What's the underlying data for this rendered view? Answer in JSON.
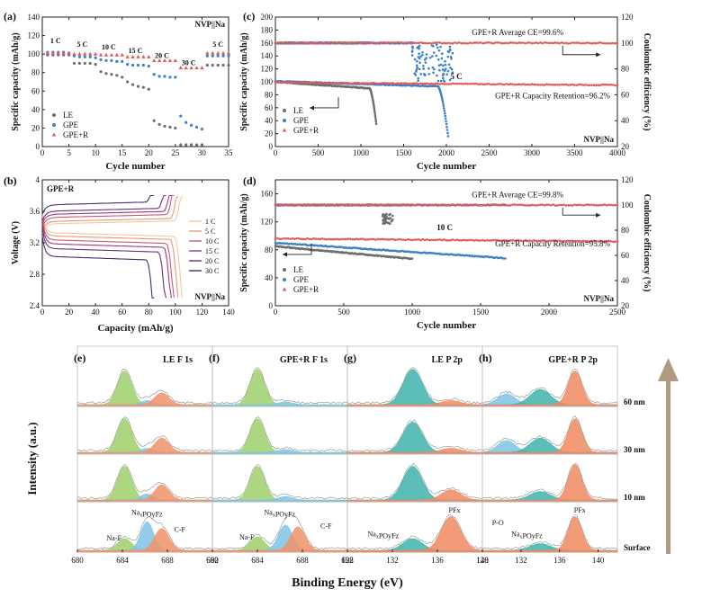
{
  "colors": {
    "le": "#6e6e6e",
    "gpe": "#3e80c6",
    "gper": "#e05a5a",
    "f_na_f": "#9ecf6a",
    "f_naxpo": "#7ec4e8",
    "f_cf": "#f1926a",
    "p_naxpo": "#3fb3ad",
    "p_pf": "#f18a60",
    "p_po": "#7ec4e8",
    "envelope": "#9a9a9a",
    "arrow": "#b09a80",
    "rate": [
      "#f6c79f",
      "#e49a7a",
      "#c65a74",
      "#9b3b7a",
      "#6b2f7a",
      "#4a2a70"
    ]
  },
  "chart_data": [
    {
      "id": "a",
      "type": "scatter",
      "panel_label": "(a)",
      "corner_label": "NVP||Na",
      "xlabel": "Cycle number",
      "ylabel": "Specific capacity (mAh/g)",
      "xlim": [
        0,
        35
      ],
      "ylim": [
        0,
        140
      ],
      "xticks": [
        0,
        5,
        10,
        15,
        20,
        25,
        30,
        35
      ],
      "yticks": [
        0,
        20,
        40,
        60,
        80,
        100,
        120,
        140
      ],
      "rate_labels": [
        {
          "text": "1 C",
          "x": 2.5,
          "y": 112
        },
        {
          "text": "5 C",
          "x": 7.5,
          "y": 108
        },
        {
          "text": "10 C",
          "x": 12.5,
          "y": 105
        },
        {
          "text": "15 C",
          "x": 17.5,
          "y": 101
        },
        {
          "text": "20 C",
          "x": 22.5,
          "y": 96
        },
        {
          "text": "30 C",
          "x": 27.5,
          "y": 88
        },
        {
          "text": "5 C",
          "x": 33,
          "y": 108
        }
      ],
      "series": [
        {
          "name": "LE",
          "color_key": "le",
          "points": [
            [
              1,
              99
            ],
            [
              2,
              99
            ],
            [
              3,
              99
            ],
            [
              4,
              99
            ],
            [
              5,
              99
            ],
            [
              6,
              90
            ],
            [
              7,
              90
            ],
            [
              8,
              90
            ],
            [
              9,
              90
            ],
            [
              10,
              89
            ],
            [
              11,
              81
            ],
            [
              12,
              79
            ],
            [
              13,
              78
            ],
            [
              14,
              77
            ],
            [
              15,
              75
            ],
            [
              16,
              70
            ],
            [
              17,
              67
            ],
            [
              18,
              65
            ],
            [
              19,
              64
            ],
            [
              20,
              62
            ],
            [
              21,
              28
            ],
            [
              22,
              24
            ],
            [
              23,
              22
            ],
            [
              24,
              21
            ],
            [
              25,
              20
            ],
            [
              26,
              2
            ],
            [
              27,
              2
            ],
            [
              28,
              2
            ],
            [
              29,
              2
            ],
            [
              30,
              2
            ],
            [
              31,
              88
            ],
            [
              32,
              88
            ],
            [
              33,
              88
            ],
            [
              34,
              88
            ],
            [
              35,
              88
            ]
          ]
        },
        {
          "name": "GPE",
          "color_key": "gpe",
          "points": [
            [
              1,
              102
            ],
            [
              2,
              102
            ],
            [
              3,
              102
            ],
            [
              4,
              102
            ],
            [
              5,
              101
            ],
            [
              6,
              98
            ],
            [
              7,
              97
            ],
            [
              8,
              97
            ],
            [
              9,
              97
            ],
            [
              10,
              96
            ],
            [
              11,
              94
            ],
            [
              12,
              93
            ],
            [
              13,
              93
            ],
            [
              14,
              92
            ],
            [
              15,
              92
            ],
            [
              16,
              89
            ],
            [
              17,
              88
            ],
            [
              18,
              88
            ],
            [
              19,
              88
            ],
            [
              20,
              87
            ],
            [
              21,
              78
            ],
            [
              22,
              76
            ],
            [
              23,
              76
            ],
            [
              24,
              75
            ],
            [
              25,
              75
            ],
            [
              26,
              33
            ],
            [
              27,
              26
            ],
            [
              28,
              23
            ],
            [
              29,
              21
            ],
            [
              30,
              19
            ],
            [
              31,
              98
            ],
            [
              32,
              98
            ],
            [
              33,
              98
            ],
            [
              34,
              98
            ],
            [
              35,
              98
            ]
          ]
        },
        {
          "name": "GPE+R",
          "color_key": "gper",
          "points": [
            [
              1,
              101
            ],
            [
              2,
              101
            ],
            [
              3,
              101
            ],
            [
              4,
              101
            ],
            [
              5,
              101
            ],
            [
              6,
              100
            ],
            [
              7,
              100
            ],
            [
              8,
              100
            ],
            [
              9,
              100
            ],
            [
              10,
              100
            ],
            [
              11,
              99
            ],
            [
              12,
              99
            ],
            [
              13,
              99
            ],
            [
              14,
              99
            ],
            [
              15,
              99
            ],
            [
              16,
              97
            ],
            [
              17,
              97
            ],
            [
              18,
              97
            ],
            [
              19,
              97
            ],
            [
              20,
              97
            ],
            [
              21,
              93
            ],
            [
              22,
              93
            ],
            [
              23,
              93
            ],
            [
              24,
              93
            ],
            [
              25,
              93
            ],
            [
              26,
              85
            ],
            [
              27,
              85
            ],
            [
              28,
              85
            ],
            [
              29,
              85
            ],
            [
              30,
              85
            ],
            [
              31,
              101
            ],
            [
              32,
              101
            ],
            [
              33,
              101
            ],
            [
              34,
              101
            ],
            [
              35,
              101
            ]
          ]
        }
      ],
      "legend_position": "bottom-left"
    },
    {
      "id": "b",
      "type": "line",
      "panel_label": "(b)",
      "corner_label": "NVP||Na",
      "inner_title": "GPE+R",
      "xlabel": "Capacity (mAh/g)",
      "ylabel": "Voltage (V)",
      "xlim": [
        0,
        140
      ],
      "ylim": [
        2.4,
        4.0
      ],
      "xticks": [
        0,
        20,
        40,
        60,
        80,
        100,
        120,
        140
      ],
      "yticks": [
        2.4,
        2.8,
        3.2,
        3.6,
        4.0
      ],
      "series": [
        {
          "name": "1 C",
          "capacity": 105,
          "charge_v": 3.44,
          "discharge_v": 3.33
        },
        {
          "name": "5 C",
          "capacity": 102,
          "charge_v": 3.47,
          "discharge_v": 3.29
        },
        {
          "name": "10 C",
          "capacity": 99,
          "charge_v": 3.52,
          "discharge_v": 3.24
        },
        {
          "name": "15 C",
          "capacity": 97,
          "charge_v": 3.56,
          "discharge_v": 3.19
        },
        {
          "name": "20 C",
          "capacity": 93,
          "charge_v": 3.6,
          "discharge_v": 3.13
        },
        {
          "name": "30 C",
          "capacity": 84,
          "charge_v": 3.68,
          "discharge_v": 3.03
        }
      ],
      "legend_position": "right"
    },
    {
      "id": "c",
      "type": "scatter",
      "panel_label": "(c)",
      "corner_label": "NVP||Na",
      "rate_label": "5 C",
      "xlabel": "Cycle number",
      "ylabel": "Specific capacity (mAh/g)",
      "y2label": "Coulombic efficiency (%)",
      "xlim": [
        0,
        4000
      ],
      "ylim": [
        0,
        200
      ],
      "y2lim": [
        20,
        120
      ],
      "xticks": [
        0,
        500,
        1000,
        1500,
        2000,
        2500,
        3000,
        3500,
        4000
      ],
      "yticks": [
        0,
        20,
        40,
        60,
        80,
        100,
        120,
        140,
        160,
        180,
        200
      ],
      "y2ticks": [
        20,
        40,
        60,
        80,
        100,
        120
      ],
      "annotations": [
        "GPE+R Average CE=99.6%",
        "GPE+R Capacity Retention=96.2%"
      ],
      "series": [
        {
          "name": "LE",
          "color_key": "le",
          "capacity": {
            "start": 100,
            "end": 90,
            "last_cycle": 1100,
            "drop_to": 35,
            "drop_end": 1180
          },
          "ce": {
            "value": 100,
            "last_cycle": 1100
          }
        },
        {
          "name": "GPE",
          "color_key": "gpe",
          "capacity": {
            "start": 101,
            "end": 93,
            "last_cycle": 1900,
            "drop_to": 16,
            "drop_end": 2020
          },
          "ce": {
            "value": 100,
            "last_cycle": 1600,
            "scatter_until": 2080
          }
        },
        {
          "name": "GPE+R",
          "color_key": "gper",
          "capacity": {
            "start": 99,
            "end": 95,
            "last_cycle": 4000
          },
          "ce": {
            "value": 100,
            "last_cycle": 4000
          }
        }
      ],
      "legend_position": "bottom-left"
    },
    {
      "id": "d",
      "type": "scatter",
      "panel_label": "(d)",
      "corner_label": "NVP||Na",
      "rate_label": "10 C",
      "xlabel": "Cycle number",
      "ylabel": "Specific capacity (mAh/g)",
      "y2label": "Coulombic efficiency (%)",
      "xlim": [
        0,
        2500
      ],
      "ylim": [
        0,
        180
      ],
      "y2lim": [
        20,
        120
      ],
      "xticks": [
        0,
        500,
        1000,
        1500,
        2000,
        2500
      ],
      "yticks": [
        0,
        40,
        80,
        120,
        160
      ],
      "y2ticks": [
        20,
        40,
        60,
        80,
        100,
        120
      ],
      "annotations": [
        "GPE+R Average CE=99.8%",
        "GPE+R Capacity Retention=95.8%"
      ],
      "series": [
        {
          "name": "LE",
          "color_key": "le",
          "capacity": {
            "start": 85,
            "end": 67,
            "last_cycle": 1000
          },
          "ce": {
            "value": 100,
            "last_cycle": 1000,
            "scatter_range": [
              780,
              860
            ]
          }
        },
        {
          "name": "GPE",
          "color_key": "gpe",
          "capacity": {
            "start": 90,
            "end": 68,
            "last_cycle": 1680
          },
          "ce": {
            "value": 100,
            "last_cycle": 1680
          }
        },
        {
          "name": "GPE+R",
          "color_key": "gper",
          "capacity": {
            "start": 96,
            "end": 92,
            "last_cycle": 2500
          },
          "ce": {
            "value": 100,
            "last_cycle": 2500
          }
        }
      ],
      "legend_position": "bottom-left"
    }
  ],
  "xps": {
    "ylabel": "Intensity (a.u.)",
    "xlabel": "Binding Energy (eV)",
    "depths": [
      "60 nm",
      "30 nm",
      "10 nm",
      "Surface"
    ],
    "panels": [
      {
        "id": "e",
        "label": "(e)",
        "title": "LE F 1s",
        "xlim": [
          680,
          692
        ],
        "xticks": [
          680,
          684,
          688,
          692
        ],
        "peaks": [
          {
            "key": "f_na_f",
            "center": 684.2,
            "width": 0.9,
            "amps": [
              1.0,
              1.0,
              1.0,
              0.35
            ]
          },
          {
            "key": "f_naxpo",
            "center": 686.2,
            "width": 0.8,
            "amps": [
              0.12,
              0.12,
              0.18,
              0.85
            ]
          },
          {
            "key": "f_cf",
            "center": 687.5,
            "width": 0.9,
            "amps": [
              0.35,
              0.42,
              0.45,
              0.65
            ]
          }
        ],
        "labels": [
          {
            "text": "Na-F",
            "x": 682.6,
            "y": 0.3,
            "key": "f_na_f"
          },
          {
            "text": "NaxPOyFz",
            "x": 684.8,
            "y": 1.05,
            "key": "f_naxpo"
          },
          {
            "text": "C-F",
            "x": 688.6,
            "y": 0.55,
            "key": "f_cf"
          }
        ]
      },
      {
        "id": "f",
        "label": "(f)",
        "title": "GPE+R F 1s",
        "xlim": [
          680,
          692
        ],
        "xticks": [
          680,
          684,
          688,
          692
        ],
        "peaks": [
          {
            "key": "f_na_f",
            "center": 684.0,
            "width": 0.9,
            "amps": [
              1.05,
              1.0,
              1.0,
              0.4
            ]
          },
          {
            "key": "f_naxpo",
            "center": 686.5,
            "width": 0.9,
            "amps": [
              0.08,
              0.08,
              0.1,
              0.75
            ]
          },
          {
            "key": "f_cf",
            "center": 687.6,
            "width": 0.9,
            "amps": [
              0.0,
              0.0,
              0.0,
              0.7
            ]
          }
        ],
        "labels": [
          {
            "text": "Na-F",
            "x": 682.4,
            "y": 0.32,
            "key": "f_na_f"
          },
          {
            "text": "NaxPOyFz",
            "x": 684.6,
            "y": 1.05,
            "key": "f_naxpo"
          },
          {
            "text": "C-F",
            "x": 689.6,
            "y": 0.65,
            "key": "f_cf"
          }
        ]
      },
      {
        "id": "g",
        "label": "(g)",
        "title": "LE P 2p",
        "xlim": [
          128,
          140
        ],
        "xticks": [
          128,
          132,
          136,
          140
        ],
        "peaks": [
          {
            "key": "p_naxpo",
            "center": 133.8,
            "width": 1.2,
            "amps": [
              1.05,
              0.9,
              1.0,
              0.35
            ]
          },
          {
            "key": "p_pf",
            "center": 137.2,
            "width": 1.2,
            "amps": [
              0.12,
              0.12,
              0.3,
              1.0
            ]
          }
        ],
        "labels": [
          {
            "text": "NaxPOyFz",
            "x": 129.8,
            "y": 0.42,
            "key": "p_naxpo"
          },
          {
            "text": "PFx",
            "x": 137.0,
            "y": 1.12,
            "key": "p_pf"
          }
        ]
      },
      {
        "id": "h",
        "label": "(h)",
        "title": "GPE+R P 2p",
        "xlim": [
          128,
          142
        ],
        "xticks": [
          128,
          132,
          136,
          140
        ],
        "peaks": [
          {
            "key": "p_po",
            "center": 130.5,
            "width": 1.3,
            "amps": [
              0.32,
              0.35,
              0.0,
              0.0
            ]
          },
          {
            "key": "p_naxpo",
            "center": 134.0,
            "width": 1.5,
            "amps": [
              0.45,
              0.42,
              0.25,
              0.2
            ]
          },
          {
            "key": "p_pf",
            "center": 137.6,
            "width": 1.0,
            "amps": [
              1.0,
              1.0,
              1.05,
              1.0
            ]
          }
        ],
        "labels": [
          {
            "text": "P-O",
            "x": 129.0,
            "y": 0.75,
            "key": "p_po"
          },
          {
            "text": "NaxPOyFz",
            "x": 131.0,
            "y": 0.42,
            "key": "p_naxpo"
          },
          {
            "text": "PFx",
            "x": 137.5,
            "y": 1.12,
            "key": "p_pf"
          }
        ]
      }
    ]
  }
}
